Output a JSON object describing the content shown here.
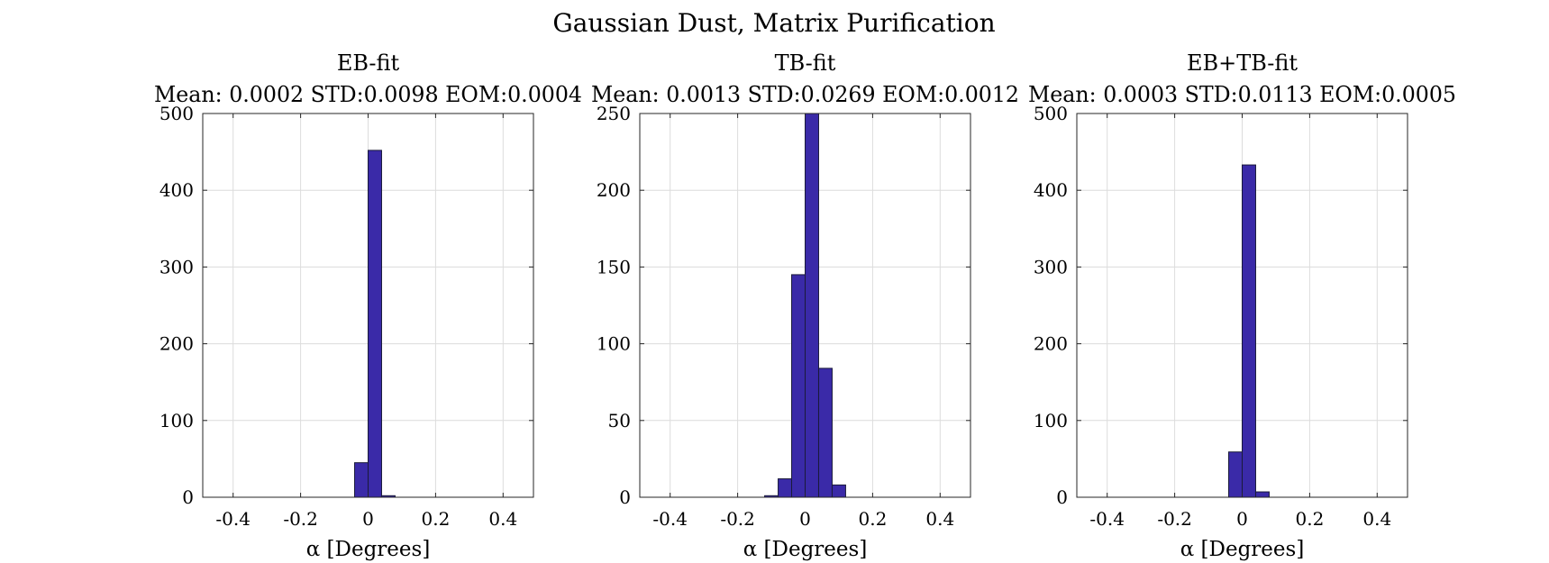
{
  "figure": {
    "title": "Gaussian Dust, Matrix Purification"
  },
  "style": {
    "bar_fill": "#3a2aa8",
    "bar_edge": "#1a1a3a",
    "grid": "#dcdcdc",
    "axis": "#262626"
  },
  "chart_data": [
    {
      "type": "bar",
      "title": "EB-fit",
      "subtitle": "Mean: 0.0002 STD:0.0098 EOM:0.0004",
      "xlabel": "α [Degrees]",
      "ylabel": "",
      "xlim": [
        -0.49,
        0.49
      ],
      "ylim": [
        0,
        500
      ],
      "xticks": [
        -0.4,
        -0.2,
        0,
        0.2,
        0.4
      ],
      "xtick_labels": [
        "-0.4",
        "-0.2",
        "0",
        "0.2",
        "0.4"
      ],
      "yticks": [
        0,
        100,
        200,
        300,
        400,
        500
      ],
      "ytick_labels": [
        "0",
        "100",
        "200",
        "300",
        "400",
        "500"
      ],
      "grid": true,
      "bin_width": 0.04,
      "bins": [
        {
          "x0": -0.04,
          "x1": 0.0,
          "value": 45
        },
        {
          "x0": 0.0,
          "x1": 0.04,
          "value": 452
        },
        {
          "x0": 0.04,
          "x1": 0.08,
          "value": 2
        }
      ]
    },
    {
      "type": "bar",
      "title": "TB-fit",
      "subtitle": "Mean: 0.0013 STD:0.0269 EOM:0.0012",
      "xlabel": "α [Degrees]",
      "ylabel": "",
      "xlim": [
        -0.49,
        0.49
      ],
      "ylim": [
        0,
        250
      ],
      "xticks": [
        -0.4,
        -0.2,
        0,
        0.2,
        0.4
      ],
      "xtick_labels": [
        "-0.4",
        "-0.2",
        "0",
        "0.2",
        "0.4"
      ],
      "yticks": [
        0,
        50,
        100,
        150,
        200,
        250
      ],
      "ytick_labels": [
        "0",
        "50",
        "100",
        "150",
        "200",
        "250"
      ],
      "grid": true,
      "bin_width": 0.04,
      "bins": [
        {
          "x0": -0.12,
          "x1": -0.08,
          "value": 1
        },
        {
          "x0": -0.08,
          "x1": -0.04,
          "value": 12
        },
        {
          "x0": -0.04,
          "x1": 0.0,
          "value": 145
        },
        {
          "x0": 0.0,
          "x1": 0.04,
          "value": 250
        },
        {
          "x0": 0.04,
          "x1": 0.08,
          "value": 84
        },
        {
          "x0": 0.08,
          "x1": 0.12,
          "value": 8
        }
      ]
    },
    {
      "type": "bar",
      "title": "EB+TB-fit",
      "subtitle": "Mean: 0.0003 STD:0.0113 EOM:0.0005",
      "xlabel": "α [Degrees]",
      "ylabel": "",
      "xlim": [
        -0.49,
        0.49
      ],
      "ylim": [
        0,
        500
      ],
      "xticks": [
        -0.4,
        -0.2,
        0,
        0.2,
        0.4
      ],
      "xtick_labels": [
        "-0.4",
        "-0.2",
        "0",
        "0.2",
        "0.4"
      ],
      "yticks": [
        0,
        100,
        200,
        300,
        400,
        500
      ],
      "ytick_labels": [
        "0",
        "100",
        "200",
        "300",
        "400",
        "500"
      ],
      "grid": true,
      "bin_width": 0.04,
      "bins": [
        {
          "x0": -0.04,
          "x1": 0.0,
          "value": 59
        },
        {
          "x0": 0.0,
          "x1": 0.04,
          "value": 433
        },
        {
          "x0": 0.04,
          "x1": 0.08,
          "value": 7
        }
      ]
    }
  ]
}
